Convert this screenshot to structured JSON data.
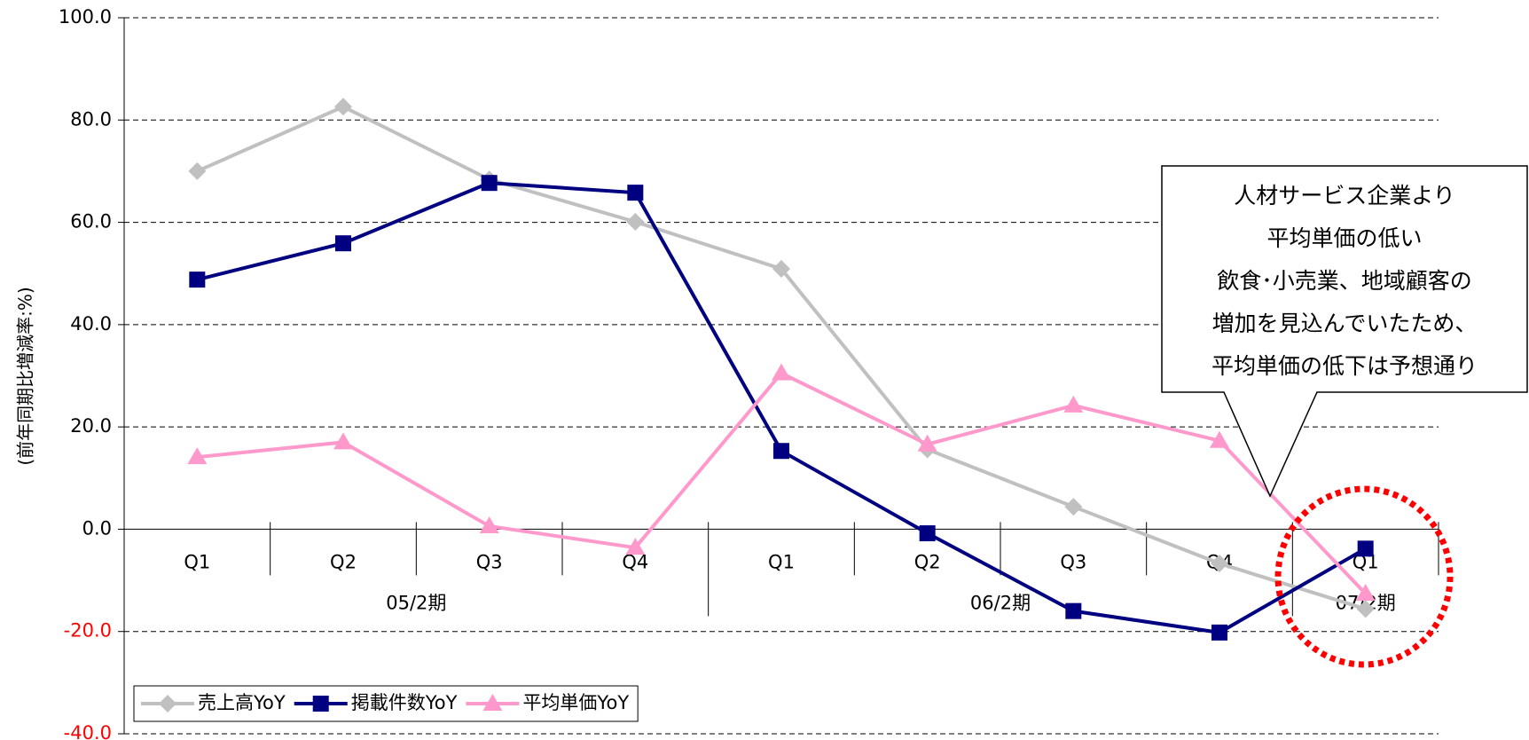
{
  "chart_data": {
    "type": "line",
    "y_axis_label": "(前年同期比増減率:%)",
    "categories": [
      "Q1",
      "Q2",
      "Q3",
      "Q4",
      "Q1",
      "Q2",
      "Q3",
      "Q4",
      "Q1"
    ],
    "groups": [
      {
        "label": "05/2期",
        "span": 4
      },
      {
        "label": "06/2期",
        "span": 4
      },
      {
        "label": "07/2期",
        "span": 1
      }
    ],
    "series": [
      {
        "name": "売上高YoY",
        "color": "#c0c0c0",
        "marker": "diamond",
        "values": [
          70.0,
          82.6,
          68.4,
          60.1,
          50.9,
          15.6,
          4.4,
          -6.7,
          -15.6
        ]
      },
      {
        "name": "掲載件数YoY",
        "color": "#000080",
        "marker": "square",
        "values": [
          48.8,
          55.9,
          67.7,
          65.8,
          15.3,
          -0.8,
          -16.0,
          -20.2,
          -3.8
        ]
      },
      {
        "name": "平均単価YoY",
        "color": "#ff99cc",
        "marker": "triangle",
        "values": [
          14.1,
          17.0,
          0.6,
          -3.6,
          30.5,
          16.6,
          24.2,
          17.3,
          -12.6
        ]
      }
    ],
    "ylim": [
      -40,
      100
    ],
    "yticks": [
      {
        "value": -40,
        "label": "-40.0"
      },
      {
        "value": -20,
        "label": "-20.0"
      },
      {
        "value": 0,
        "label": "0.0"
      },
      {
        "value": 20,
        "label": "20.0"
      },
      {
        "value": 40,
        "label": "40.0"
      },
      {
        "value": 60,
        "label": "60.0"
      },
      {
        "value": 80,
        "label": "80.0"
      },
      {
        "value": 100,
        "label": "100.0"
      }
    ],
    "negative_tick_color": "#ff0000",
    "grid": true,
    "legend": "lower left",
    "annotation": [
      "人材サービス企業より",
      "平均単価の低い",
      "飲食･小売業、地域顧客の",
      "増加を見込んでいたため、",
      "平均単価の低下は予想通り"
    ],
    "highlight_color": "#ff0000"
  }
}
